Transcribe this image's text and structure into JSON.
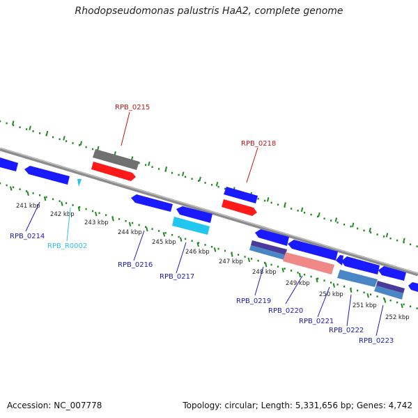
{
  "title": "Rhodopseudomonas palustris HaA2, complete genome",
  "accession": "Accession: NC_007778",
  "summary": "Topology: circular; Length: 5,331,656 bp; Genes: 4,742",
  "colors": {
    "backbone": "#8c8c8c",
    "ruler": "#1e8a1e",
    "gene_blue": "#1a1aff",
    "gene_red": "#ff1a1a",
    "gene_gray": "#707070",
    "gene_cyan": "#22c7f0",
    "gene_salmon": "#f08888",
    "gene_steel": "#4a86c6",
    "gene_navy": "#4a3a9a",
    "label_blue": "#1a1ab8",
    "label_red": "#c01818",
    "label_cyan": "#33c0e8"
  },
  "kbp_labels": [
    "241 kbp",
    "242 kbp",
    "243 kbp",
    "244 kbp",
    "245 kbp",
    "246 kbp",
    "247 kbp",
    "248 kbp",
    "249 kbp",
    "250 kbp",
    "251 kbp",
    "252 kbp"
  ],
  "gene_labels": {
    "rpb_0215": "RPB_0215",
    "rpb_0218": "RPB_0218",
    "rpb_0214": "RPB_0214",
    "rpb_r0002": "RPB_R0002",
    "rpb_0216": "RPB_0216",
    "rpb_0217": "RPB_0217",
    "rpb_0219": "RPB_0219",
    "rpb_0220": "RPB_0220",
    "rpb_0221": "RPB_0221",
    "rpb_0222": "RPB_0222",
    "rpb_0223": "RPB_0223"
  }
}
